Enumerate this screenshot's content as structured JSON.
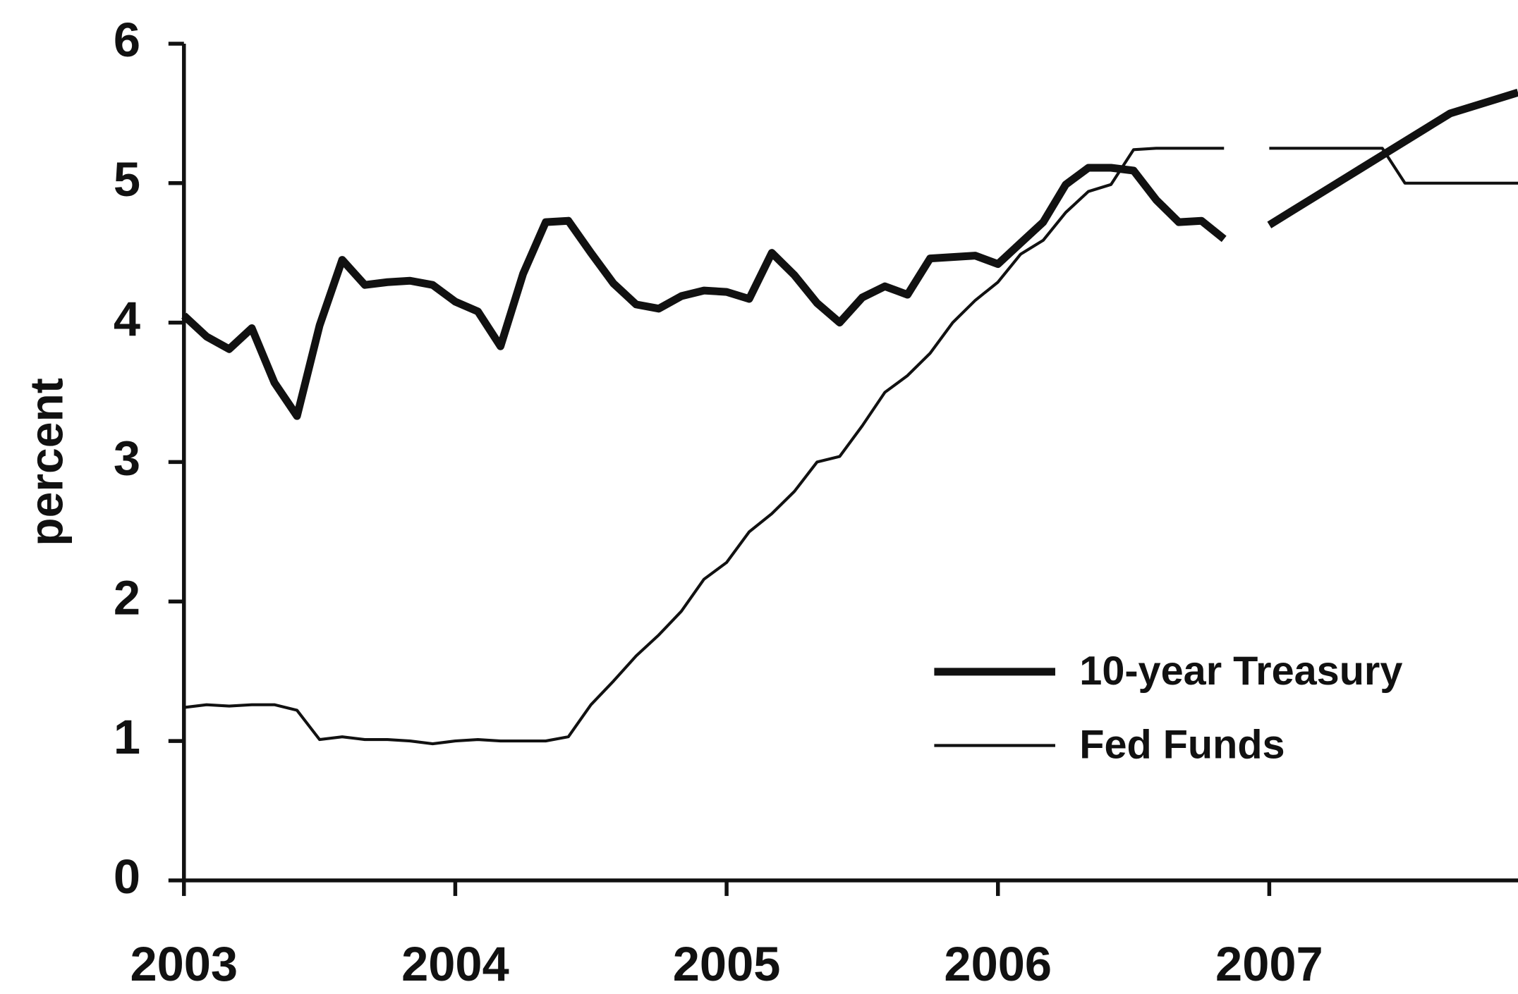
{
  "chart_data": {
    "type": "line",
    "y_label": "percent",
    "x": [
      2003,
      2003.0833,
      2003.1667,
      2003.25,
      2003.3333,
      2003.4167,
      2003.5,
      2003.5833,
      2003.6667,
      2003.75,
      2003.8333,
      2003.9167,
      2004,
      2004.0833,
      2004.1667,
      2004.25,
      2004.3333,
      2004.4167,
      2004.5,
      2004.5833,
      2004.6667,
      2004.75,
      2004.8333,
      2004.9167,
      2005,
      2005.0833,
      2005.1667,
      2005.25,
      2005.3333,
      2005.4167,
      2005.5,
      2005.5833,
      2005.6667,
      2005.75,
      2005.8333,
      2005.9167,
      2006,
      2006.0833,
      2006.1667,
      2006.25,
      2006.3333,
      2006.4167,
      2006.5,
      2006.5833,
      2006.6667,
      2006.75,
      2006.8333,
      2006.9167,
      2007,
      2007.0833,
      2007.1667,
      2007.25,
      2007.3333,
      2007.4167,
      2007.5,
      2007.5833,
      2007.6667,
      2007.75,
      2007.8333,
      2007.9167
    ],
    "series": [
      {
        "name": "10-year Treasury",
        "color": "#111111",
        "line_width": 8,
        "values": [
          4.05,
          3.9,
          3.81,
          3.96,
          3.57,
          3.33,
          3.98,
          4.45,
          4.27,
          4.29,
          4.3,
          4.27,
          4.15,
          4.08,
          3.83,
          4.35,
          4.72,
          4.73,
          4.5,
          4.28,
          4.13,
          4.1,
          4.19,
          4.23,
          4.22,
          4.17,
          4.5,
          4.34,
          4.14,
          4.0,
          4.18,
          4.26,
          4.2,
          4.46,
          4.47,
          4.48,
          4.42,
          4.57,
          4.72,
          4.99,
          5.11,
          5.11,
          5.09,
          4.88,
          4.72,
          4.73,
          4.6,
          null,
          4.7,
          4.8,
          4.9,
          5.0,
          5.1,
          5.2,
          5.3,
          5.4,
          5.5,
          5.55,
          5.6,
          5.65
        ]
      },
      {
        "name": "Fed Funds",
        "color": "#111111",
        "line_width": 3,
        "values": [
          1.24,
          1.26,
          1.25,
          1.26,
          1.26,
          1.22,
          1.01,
          1.03,
          1.01,
          1.01,
          1.0,
          0.98,
          1.0,
          1.01,
          1.0,
          1.0,
          1.0,
          1.03,
          1.26,
          1.43,
          1.61,
          1.76,
          1.93,
          2.16,
          2.28,
          2.5,
          2.63,
          2.79,
          3.0,
          3.04,
          3.26,
          3.5,
          3.62,
          3.78,
          4.0,
          4.16,
          4.29,
          4.49,
          4.59,
          4.79,
          4.94,
          4.99,
          5.24,
          5.25,
          5.25,
          5.25,
          5.25,
          null,
          5.25,
          5.25,
          5.25,
          5.25,
          5.25,
          5.25,
          5.0,
          5.0,
          5.0,
          5.0,
          5.0,
          5.0
        ]
      }
    ],
    "xlim": [
      2003,
      2007.9167
    ],
    "xticks": [
      2003,
      2004,
      2005,
      2006,
      2007
    ],
    "ylim": [
      0,
      6
    ],
    "yticks": [
      0,
      1,
      2,
      3,
      4,
      5,
      6
    ],
    "grid": false,
    "legend": "lower right"
  }
}
